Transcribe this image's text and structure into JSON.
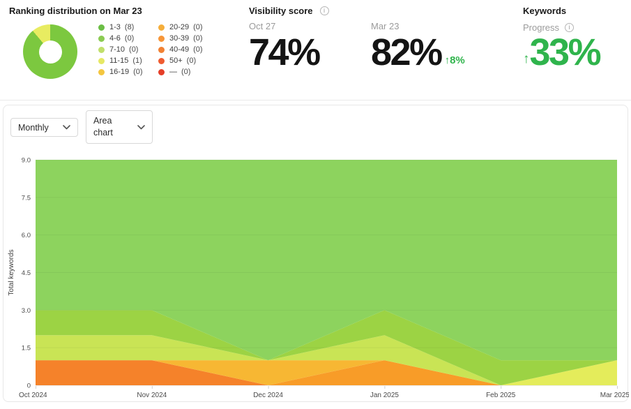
{
  "header": {
    "ranking": {
      "title": "Ranking distribution on Mar 23",
      "donut": {
        "slices": [
          {
            "label": "1-3",
            "value": 8,
            "color": "#7cc83f"
          },
          {
            "label": "11-15",
            "value": 1,
            "color": "#e8ec61"
          }
        ]
      },
      "legend": [
        {
          "label": "1-3",
          "count": 8,
          "color": "#6bbe45"
        },
        {
          "label": "4-6",
          "count": 0,
          "color": "#8bcb52"
        },
        {
          "label": "7-10",
          "count": 0,
          "color": "#c0df6b"
        },
        {
          "label": "11-15",
          "count": 1,
          "color": "#e6e864"
        },
        {
          "label": "16-19",
          "count": 0,
          "color": "#f4c63f"
        },
        {
          "label": "20-29",
          "count": 0,
          "color": "#f5ae3b"
        },
        {
          "label": "30-39",
          "count": 0,
          "color": "#f79638"
        },
        {
          "label": "40-49",
          "count": 0,
          "color": "#f28133"
        },
        {
          "label": "50+",
          "count": 0,
          "color": "#ef5b30"
        },
        {
          "label": "—",
          "count": 0,
          "color": "#e53e28"
        }
      ]
    },
    "visibility": {
      "title": "Visibility score",
      "points": [
        {
          "date": "Oct 27",
          "score": "74%"
        },
        {
          "date": "Mar 23",
          "score": "82%",
          "delta": "↑8%"
        }
      ]
    },
    "keywords": {
      "title": "Keywords",
      "progress_label": "Progress",
      "delta_arrow": "↑",
      "delta_value": "33%"
    }
  },
  "icons": {
    "info": "i"
  },
  "accent": {
    "green": "#2fb44c"
  },
  "controls": {
    "period_dropdown": "Monthly",
    "chart_type_dropdown": "Area chart"
  },
  "chart_data": {
    "type": "area",
    "stacked": true,
    "ylabel": "Total keywords",
    "ylim": [
      0,
      9
    ],
    "y_ticks": [
      "0",
      "1.5",
      "3.0",
      "4.5",
      "6.0",
      "7.5",
      "9.0"
    ],
    "categories": [
      "Oct 2024",
      "Nov 2024",
      "Dec 2024",
      "Jan 2025",
      "Feb 2025",
      "Mar 2025"
    ],
    "legend_position": "none",
    "grid": "faint-horizontal",
    "series_stack_order": "bottom-to-top",
    "series": [
      {
        "name": "—",
        "color": "#e53e28",
        "values": [
          0,
          0,
          0,
          0,
          0,
          0
        ]
      },
      {
        "name": "50+",
        "color": "#ef5b30",
        "values": [
          0,
          0,
          0,
          0,
          0,
          0
        ]
      },
      {
        "name": "40-49",
        "color": "#f5822a",
        "values": [
          1,
          1,
          0,
          0,
          0,
          0
        ]
      },
      {
        "name": "30-39",
        "color": "#f89c28",
        "values": [
          0,
          0,
          0,
          1,
          0,
          0
        ]
      },
      {
        "name": "20-29",
        "color": "#f7b733",
        "values": [
          0,
          0,
          1,
          0,
          0,
          0
        ]
      },
      {
        "name": "16-19",
        "color": "#f4c63f",
        "values": [
          0,
          0,
          0,
          0,
          0,
          0
        ]
      },
      {
        "name": "11-15",
        "color": "#e4ec5b",
        "values": [
          0,
          0,
          0,
          0,
          0,
          1
        ]
      },
      {
        "name": "7-10",
        "color": "#c9e455",
        "values": [
          1,
          1,
          0,
          1,
          0,
          0
        ]
      },
      {
        "name": "4-6",
        "color": "#9cd344",
        "values": [
          1,
          1,
          0,
          1,
          1,
          0
        ]
      },
      {
        "name": "1-3",
        "color": "#8dd35e",
        "values": [
          6,
          6,
          8,
          6,
          8,
          8
        ]
      }
    ]
  }
}
